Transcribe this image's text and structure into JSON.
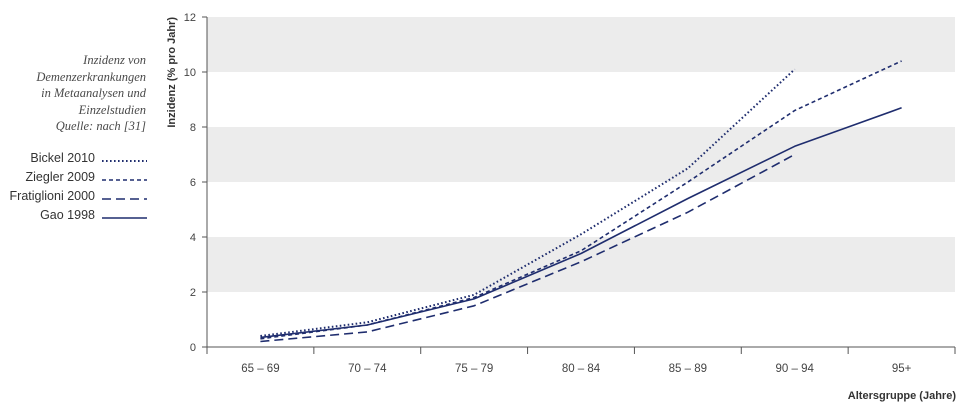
{
  "caption": {
    "lines": [
      "Inzidenz von",
      "Demenzerkrankungen",
      "in Metaanalysen und",
      "Einzelstudien"
    ],
    "source": "Quelle: nach [31]"
  },
  "colors": {
    "line": "#1f2d6e",
    "band": "#ececec",
    "axis": "#555555"
  },
  "chart_data": {
    "type": "line",
    "categories": [
      "65 – 69",
      "70 – 74",
      "75 – 79",
      "80 – 84",
      "85 – 89",
      "90 – 94",
      "95+"
    ],
    "xlabel": "Altersgruppe (Jahre)",
    "ylabel": "Inzidenz (% pro Jahr)",
    "ylim": [
      0,
      12
    ],
    "yticks": [
      0,
      2,
      4,
      6,
      8,
      10,
      12
    ],
    "grid": "alternating horizontal bands",
    "legend_position": "left",
    "series": [
      {
        "name": "Bickel 2010",
        "style": "dotted",
        "values": [
          0.4,
          0.9,
          1.9,
          4.1,
          6.5,
          10.1,
          null
        ]
      },
      {
        "name": "Ziegler 2009",
        "style": "dashed",
        "values": [
          0.3,
          0.8,
          1.8,
          3.5,
          6.0,
          8.6,
          10.4
        ]
      },
      {
        "name": "Fratiglioni 2000",
        "style": "longdash",
        "values": [
          0.2,
          0.55,
          1.5,
          3.1,
          4.9,
          7.0,
          null
        ]
      },
      {
        "name": "Gao 1998",
        "style": "solid",
        "values": [
          0.35,
          0.8,
          1.75,
          3.4,
          5.4,
          7.3,
          8.7
        ]
      }
    ]
  }
}
